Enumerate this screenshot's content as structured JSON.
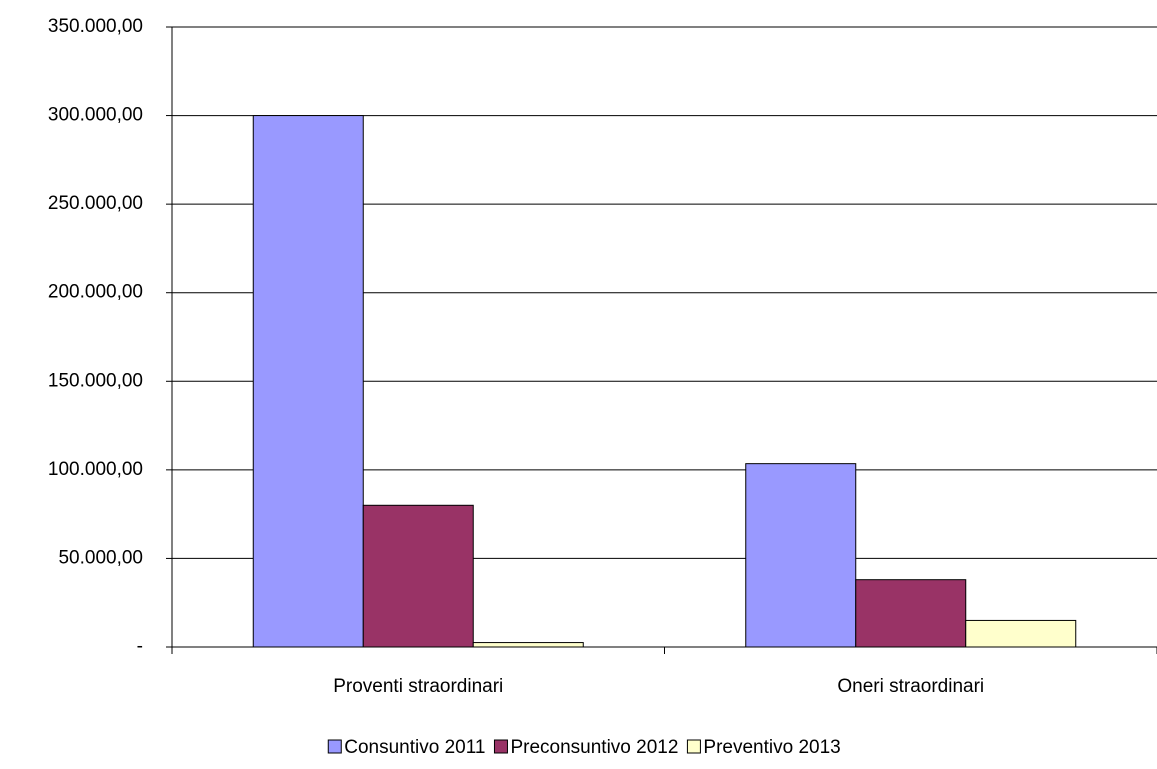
{
  "chart_data": {
    "type": "bar",
    "categories": [
      "Proventi straordinari",
      "Oneri straordinari"
    ],
    "series": [
      {
        "name": "Consuntivo 2011",
        "color": "#9999ff",
        "values": [
          300000,
          103500
        ]
      },
      {
        "name": "Preconsuntivo 2012",
        "color": "#993366",
        "values": [
          80000,
          38000
        ]
      },
      {
        "name": "Preventivo 2013",
        "color": "#ffffcc",
        "values": [
          2500,
          15000
        ]
      }
    ],
    "ylim": [
      0,
      350000
    ],
    "yticks": [
      {
        "value": 0,
        "label": "-"
      },
      {
        "value": 50000,
        "label": "50.000,00"
      },
      {
        "value": 100000,
        "label": "100.000,00"
      },
      {
        "value": 150000,
        "label": "150.000,00"
      },
      {
        "value": 200000,
        "label": "200.000,00"
      },
      {
        "value": 250000,
        "label": "250.000,00"
      },
      {
        "value": 300000,
        "label": "300.000,00"
      },
      {
        "value": 350000,
        "label": "350.000,00"
      }
    ],
    "grid": true
  }
}
